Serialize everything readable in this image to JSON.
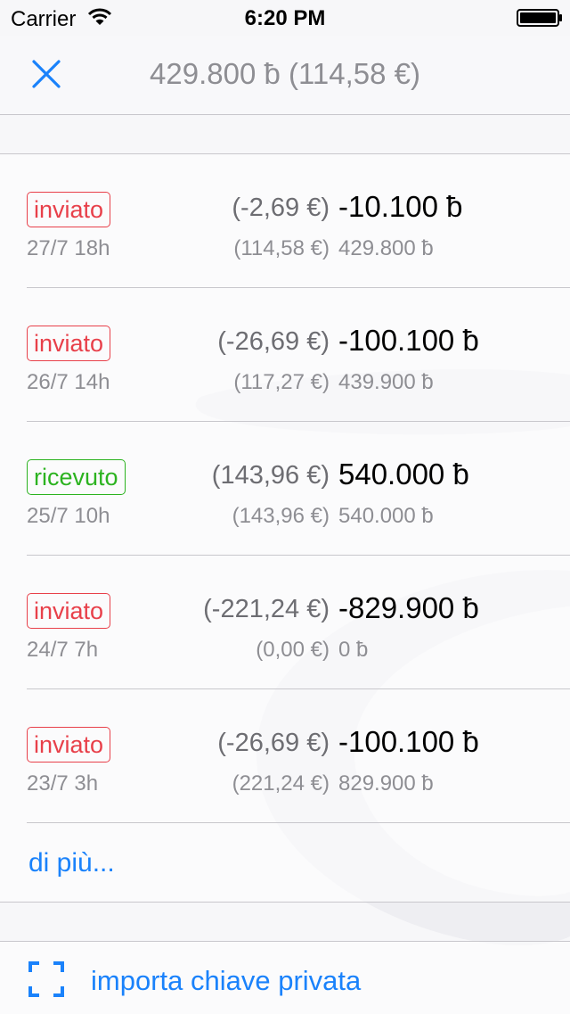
{
  "status_bar": {
    "carrier": "Carrier",
    "time": "6:20 PM",
    "icons": [
      "wifi-icon",
      "battery-icon"
    ]
  },
  "nav": {
    "title": "429.800 ƀ (114,58 €)",
    "close_icon": "close-icon"
  },
  "colors": {
    "accent": "#1a82fb",
    "sent": "#e8404a",
    "received": "#2cb320",
    "secondary_text": "#8e8e93"
  },
  "transactions": [
    {
      "status": "inviato",
      "type": "sent",
      "date": "27/7 18h",
      "fiat": "(-2,69 €)",
      "amount": "-10.100 ƀ",
      "balance_fiat": "(114,58 €)",
      "balance": "429.800 ƀ"
    },
    {
      "status": "inviato",
      "type": "sent",
      "date": "26/7 14h",
      "fiat": "(-26,69 €)",
      "amount": "-100.100 ƀ",
      "balance_fiat": "(117,27 €)",
      "balance": "439.900 ƀ"
    },
    {
      "status": "ricevuto",
      "type": "received",
      "date": "25/7 10h",
      "fiat": "(143,96 €)",
      "amount": "540.000 ƀ",
      "balance_fiat": "(143,96 €)",
      "balance": "540.000 ƀ"
    },
    {
      "status": "inviato",
      "type": "sent",
      "date": "24/7 7h",
      "fiat": "(-221,24 €)",
      "amount": "-829.900 ƀ",
      "balance_fiat": "(0,00 €)",
      "balance": "0 ƀ"
    },
    {
      "status": "inviato",
      "type": "sent",
      "date": "23/7 3h",
      "fiat": "(-26,69 €)",
      "amount": "-100.100 ƀ",
      "balance_fiat": "(221,24 €)",
      "balance": "829.900 ƀ"
    }
  ],
  "more_label": "di più...",
  "action": {
    "icon": "scan-icon",
    "label": "importa chiave privata"
  }
}
